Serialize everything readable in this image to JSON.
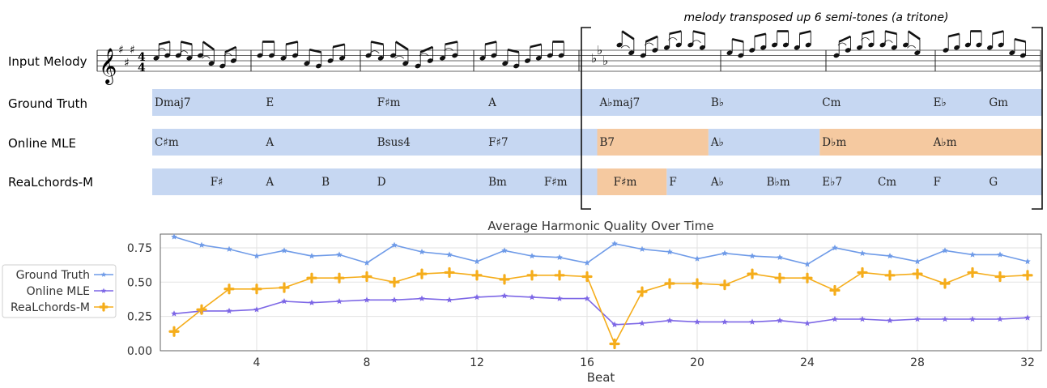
{
  "annotation": "melody transposed up 6 semi-tones (a tritone)",
  "row_labels": {
    "input_melody": "Input Melody",
    "ground_truth": "Ground Truth",
    "online_mle": "Online MLE",
    "realchords": "ReaLchords-M"
  },
  "colors": {
    "blue_band": "#c6d7f2",
    "orange_band": "#f5c9a0",
    "ground_truth": "#6f9be8",
    "online_mle": "#7d67e6",
    "realchords": "#f5ad1b"
  },
  "chord_rows": {
    "ground_truth": {
      "chords": [
        {
          "label": "Dmaj7",
          "beat": 1
        },
        {
          "label": "E",
          "beat": 5
        },
        {
          "label": "F♯m",
          "beat": 9
        },
        {
          "label": "A",
          "beat": 13
        },
        {
          "label": "A♭maj7",
          "beat": 17
        },
        {
          "label": "B♭",
          "beat": 21
        },
        {
          "label": "Cm",
          "beat": 25
        },
        {
          "label": "E♭",
          "beat": 29
        },
        {
          "label": "Gm",
          "beat": 31
        }
      ],
      "segments": [
        {
          "start": 1,
          "end": 33,
          "color": "blue"
        }
      ]
    },
    "online_mle": {
      "chords": [
        {
          "label": "C♯m",
          "beat": 1
        },
        {
          "label": "A",
          "beat": 5
        },
        {
          "label": "Bsus4",
          "beat": 9
        },
        {
          "label": "F♯7",
          "beat": 13
        },
        {
          "label": "B7",
          "beat": 17
        },
        {
          "label": "A♭",
          "beat": 21
        },
        {
          "label": "D♭m",
          "beat": 25
        },
        {
          "label": "A♭m",
          "beat": 29
        }
      ],
      "segments": [
        {
          "start": 1,
          "end": 17,
          "color": "blue"
        },
        {
          "start": 17,
          "end": 21,
          "color": "orange"
        },
        {
          "start": 21,
          "end": 25,
          "color": "blue"
        },
        {
          "start": 25,
          "end": 33,
          "color": "orange"
        }
      ]
    },
    "realchords": {
      "chords": [
        {
          "label": "F♯",
          "beat": 3
        },
        {
          "label": "A",
          "beat": 5
        },
        {
          "label": "B",
          "beat": 7
        },
        {
          "label": "D",
          "beat": 9
        },
        {
          "label": "Bm",
          "beat": 13
        },
        {
          "label": "F♯m",
          "beat": 15
        },
        {
          "label": "F♯m",
          "beat": 17.5
        },
        {
          "label": "F",
          "beat": 19.5
        },
        {
          "label": "A♭",
          "beat": 21
        },
        {
          "label": "B♭m",
          "beat": 23
        },
        {
          "label": "E♭7",
          "beat": 25
        },
        {
          "label": "Cm",
          "beat": 27
        },
        {
          "label": "F",
          "beat": 29
        },
        {
          "label": "G",
          "beat": 31
        }
      ],
      "segments": [
        {
          "start": 1,
          "end": 17,
          "color": "blue"
        },
        {
          "start": 17,
          "end": 19.5,
          "color": "orange"
        },
        {
          "start": 19.5,
          "end": 33,
          "color": "blue"
        }
      ]
    }
  },
  "melody": {
    "key_signature_first": "A major (3 sharps)",
    "time_signature": "4/4",
    "key_signature_second": "E♭ major (3 flats)"
  },
  "chart_data": {
    "type": "line",
    "title": "Average Harmonic Quality Over Time",
    "xlabel": "Beat",
    "ylabel": "",
    "x": [
      1,
      2,
      3,
      4,
      5,
      6,
      7,
      8,
      9,
      10,
      11,
      12,
      13,
      14,
      15,
      16,
      17,
      18,
      19,
      20,
      21,
      22,
      23,
      24,
      25,
      26,
      27,
      28,
      29,
      30,
      31,
      32
    ],
    "xlim": [
      0.5,
      32.5
    ],
    "ylim": [
      0.0,
      0.85
    ],
    "xticks": [
      4,
      8,
      12,
      16,
      20,
      24,
      28,
      32
    ],
    "yticks": [
      0.0,
      0.25,
      0.5,
      0.75
    ],
    "ytick_labels": [
      "0.00",
      "0.25",
      "0.50",
      "0.75"
    ],
    "grid": true,
    "legend_position": "left, outside",
    "series": [
      {
        "name": "Ground Truth",
        "color": "#6f9be8",
        "marker": "star",
        "values": [
          0.83,
          0.77,
          0.74,
          0.69,
          0.73,
          0.69,
          0.7,
          0.64,
          0.77,
          0.72,
          0.7,
          0.65,
          0.73,
          0.69,
          0.68,
          0.64,
          0.78,
          0.74,
          0.72,
          0.67,
          0.71,
          0.69,
          0.68,
          0.63,
          0.75,
          0.71,
          0.69,
          0.65,
          0.73,
          0.7,
          0.7,
          0.65
        ]
      },
      {
        "name": "Online MLE",
        "color": "#7d67e6",
        "marker": "star",
        "values": [
          0.27,
          0.29,
          0.29,
          0.3,
          0.36,
          0.35,
          0.36,
          0.37,
          0.37,
          0.38,
          0.37,
          0.39,
          0.4,
          0.39,
          0.38,
          0.38,
          0.19,
          0.2,
          0.22,
          0.21,
          0.21,
          0.21,
          0.22,
          0.2,
          0.23,
          0.23,
          0.22,
          0.23,
          0.23,
          0.23,
          0.23,
          0.24
        ]
      },
      {
        "name": "ReaLchords-M",
        "color": "#f5ad1b",
        "marker": "plus",
        "values": [
          0.14,
          0.3,
          0.45,
          0.45,
          0.46,
          0.53,
          0.53,
          0.54,
          0.5,
          0.56,
          0.57,
          0.55,
          0.52,
          0.55,
          0.55,
          0.54,
          0.05,
          0.43,
          0.49,
          0.49,
          0.48,
          0.56,
          0.53,
          0.53,
          0.44,
          0.57,
          0.55,
          0.56,
          0.49,
          0.57,
          0.54,
          0.55
        ]
      }
    ]
  }
}
